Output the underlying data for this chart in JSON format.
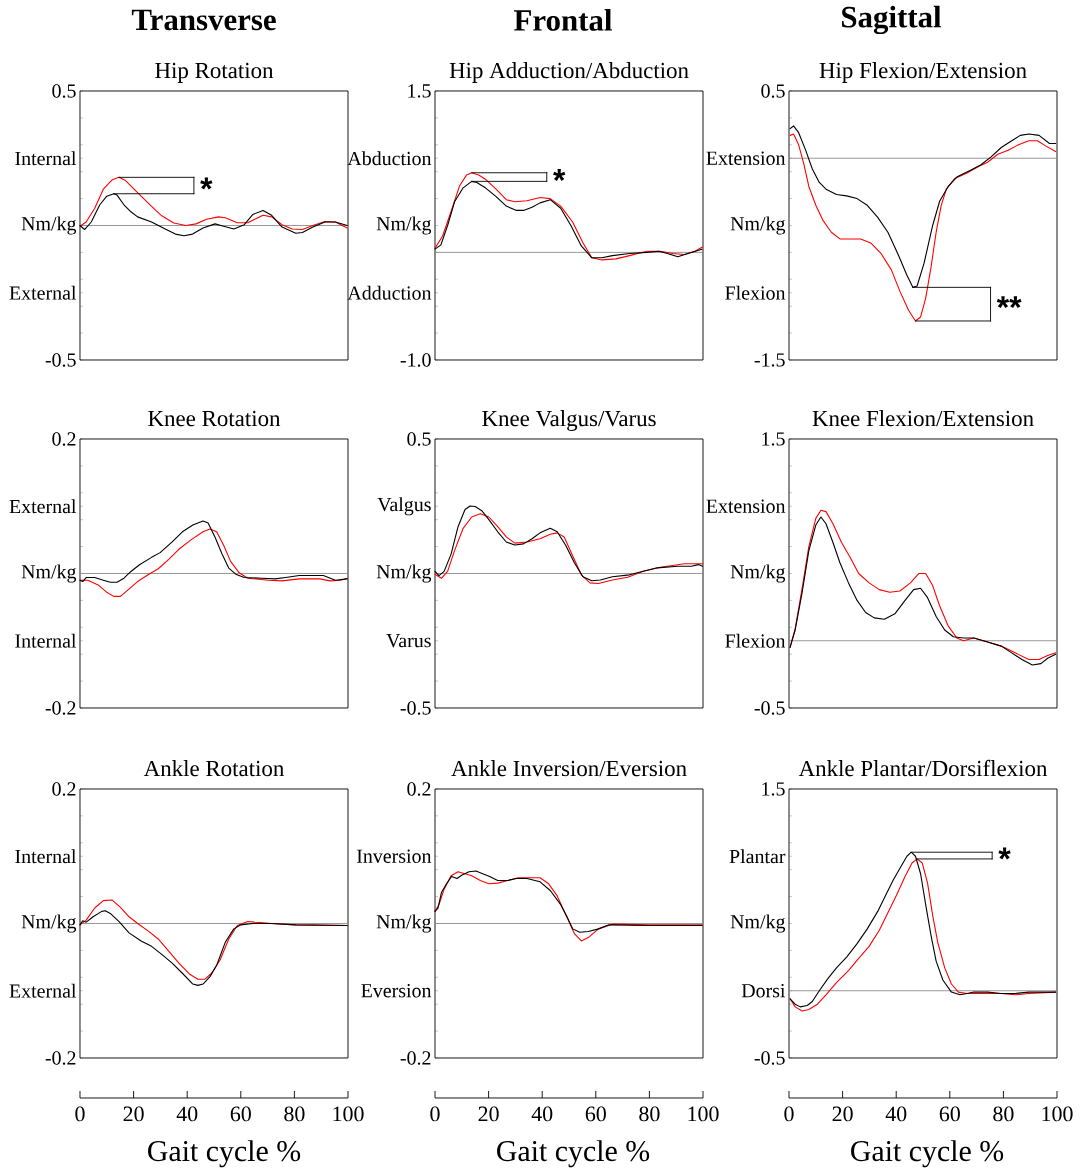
{
  "chart_data": [
    {
      "type": "line",
      "title": "Transverse",
      "subtitle": "Hip Rotation",
      "xlim": [
        0,
        100
      ],
      "ylim": [
        -0.5,
        0.5
      ],
      "tick_labels": "y",
      "yticks": [
        0.5,
        {
          "value": 0.4,
          "label": null
        },
        {
          "value": 0.3,
          "label": null
        },
        {
          "value": 0.25,
          "label": "Internal"
        },
        {
          "value": 0.2,
          "label": null
        },
        {
          "value": 0.1,
          "label": null
        },
        {
          "value": 0,
          "label": "Nm/kg"
        },
        {
          "value": -0.1,
          "label": null
        },
        {
          "value": -0.2,
          "label": null
        },
        {
          "value": -0.25,
          "label": "External"
        },
        {
          "value": -0.3,
          "label": null
        },
        {
          "value": -0.4,
          "label": null
        },
        -0.5
      ],
      "ref_lines": [
        {
          "axis": "y",
          "value": 0,
          "color": "#8c8c8c"
        }
      ],
      "series": [
        {
          "color": "#ff0000",
          "x": [
            0,
            2.3,
            5.5,
            8.7,
            11.9,
            14.5,
            17,
            19.6,
            22.8,
            26.7,
            30.5,
            35,
            39.5,
            43.3,
            47.2,
            51.7,
            54.2,
            58.7,
            62.6,
            68.3,
            71.5,
            75.4,
            79.2,
            83,
            86.9,
            91.4,
            95.3,
            99.7
          ],
          "values": [
            -0.003,
            0.013,
            0.064,
            0.135,
            0.169,
            0.179,
            0.167,
            0.141,
            0.109,
            0.071,
            0.036,
            0.009,
            0.0,
            0.006,
            0.023,
            0.032,
            0.029,
            0.01,
            0.01,
            0.038,
            0.032,
            0.003,
            -0.013,
            -0.015,
            0.0,
            0.015,
            0.013,
            -0.009
          ]
        },
        {
          "color": "#000000",
          "x": [
            0,
            1.7,
            4.2,
            7.4,
            10,
            12.6,
            13.8,
            16.4,
            19,
            21.5,
            26.7,
            31.8,
            35.6,
            38.8,
            42,
            45.9,
            50.4,
            53.6,
            57.4,
            61.3,
            64.5,
            68.3,
            71.5,
            75.4,
            80.5,
            83,
            86.9,
            91.4,
            95.3,
            99.7
          ],
          "values": [
            0.0,
            -0.015,
            0.013,
            0.077,
            0.109,
            0.118,
            0.113,
            0.077,
            0.051,
            0.032,
            0.013,
            -0.013,
            -0.032,
            -0.038,
            -0.032,
            -0.009,
            0.006,
            -0.003,
            -0.013,
            0.003,
            0.041,
            0.056,
            0.038,
            -0.006,
            -0.029,
            -0.026,
            -0.006,
            0.013,
            0.013,
            0.0
          ]
        }
      ],
      "annotations": [
        "*"
      ]
    },
    {
      "type": "line",
      "title": "Frontal",
      "subtitle": "Hip Adduction/Abduction",
      "xlim": [
        0,
        100
      ],
      "ylim": [
        -1.0,
        1.5
      ],
      "tick_labels": "y",
      "yticks": [
        1.5,
        {
          "value": 1.25,
          "label": null
        },
        {
          "value": 1.0,
          "label": null
        },
        {
          "value": 0.875,
          "label": "Abduction"
        },
        {
          "value": 0.75,
          "label": null
        },
        {
          "value": 0.5,
          "label": null
        },
        {
          "value": 0.25,
          "label": "Nm/kg"
        },
        {
          "value": 0,
          "label": null
        },
        {
          "value": -0.25,
          "label": null
        },
        {
          "value": -0.375,
          "label": "Adduction"
        },
        {
          "value": -0.5,
          "label": null
        },
        {
          "value": -0.75,
          "label": null
        },
        {
          "value": -1.0,
          "label": "-1.0"
        }
      ],
      "ref_lines": [
        {
          "axis": "y",
          "value": 0,
          "color": "#8c8c8c"
        }
      ],
      "series": [
        {
          "color": "#ff0000",
          "x": [
            0,
            2.8,
            6,
            9.2,
            11.8,
            13.7,
            16.3,
            18.8,
            22.7,
            26.6,
            29.8,
            34.3,
            39.2,
            43,
            46.9,
            51.4,
            55.2,
            58.5,
            62.3,
            67.5,
            72.6,
            79,
            84.1,
            88.7,
            93.1,
            97,
            99.8
          ],
          "values": [
            0.04,
            0.15,
            0.38,
            0.62,
            0.72,
            0.74,
            0.72,
            0.68,
            0.59,
            0.49,
            0.47,
            0.48,
            0.51,
            0.5,
            0.43,
            0.28,
            0.09,
            -0.05,
            -0.07,
            -0.06,
            -0.03,
            0.01,
            0.01,
            -0.01,
            -0.02,
            0.01,
            0.05
          ]
        },
        {
          "color": "#000000",
          "x": [
            0,
            2.2,
            4.7,
            7.3,
            10.5,
            13.7,
            15.6,
            18.8,
            22.7,
            26.6,
            30.4,
            33,
            36.2,
            39.2,
            43,
            46.9,
            50.7,
            54.6,
            58.5,
            62.3,
            66.2,
            72.6,
            79,
            83.5,
            86.7,
            90.6,
            94.4,
            99.6
          ],
          "values": [
            0.03,
            0.07,
            0.25,
            0.47,
            0.6,
            0.66,
            0.65,
            0.6,
            0.52,
            0.43,
            0.39,
            0.39,
            0.42,
            0.46,
            0.49,
            0.41,
            0.25,
            0.06,
            -0.05,
            -0.05,
            -0.03,
            -0.01,
            0.0,
            0.01,
            -0.01,
            -0.04,
            -0.01,
            0.03
          ]
        }
      ],
      "annotations": [
        "*"
      ]
    },
    {
      "type": "line",
      "title": "Sagittal",
      "subtitle": "Hip Flexion/Extension",
      "xlim": [
        0,
        100
      ],
      "ylim": [
        -1.5,
        0.5
      ],
      "tick_labels": "y",
      "yticks": [
        0.5,
        {
          "value": 0.3,
          "label": null
        },
        {
          "value": 0.1,
          "label": null
        },
        {
          "value": 0,
          "label": "Extension"
        },
        {
          "value": -0.1,
          "label": null
        },
        {
          "value": -0.3,
          "label": null
        },
        {
          "value": -0.5,
          "label": "Nm/kg"
        },
        {
          "value": -0.7,
          "label": null
        },
        {
          "value": -0.9,
          "label": null
        },
        {
          "value": -1.0,
          "label": "Flexion"
        },
        {
          "value": -1.1,
          "label": null
        },
        {
          "value": -1.3,
          "label": null
        },
        -1.5
      ],
      "ref_lines": [
        {
          "axis": "y",
          "value": 0,
          "color": "#8c8c8c"
        }
      ],
      "series": [
        {
          "color": "#ff0000",
          "x": [
            0.4,
            1.7,
            3.6,
            5.5,
            7.4,
            10,
            12.6,
            15.8,
            19,
            22.8,
            26.7,
            30.5,
            34.4,
            38.2,
            41.4,
            44.6,
            47.2,
            49.1,
            51,
            53,
            54.9,
            56.8,
            58.7,
            61.9,
            66.4,
            70.9,
            74.1,
            77.9,
            81.8,
            85.6,
            89.5,
            92.7,
            95.9,
            99.5
          ],
          "values": [
            0.17,
            0.18,
            0.1,
            -0.04,
            -0.21,
            -0.35,
            -0.46,
            -0.55,
            -0.6,
            -0.6,
            -0.6,
            -0.63,
            -0.71,
            -0.83,
            -0.99,
            -1.13,
            -1.21,
            -1.18,
            -1.04,
            -0.81,
            -0.55,
            -0.35,
            -0.23,
            -0.15,
            -0.11,
            -0.06,
            -0.03,
            0.03,
            0.06,
            0.1,
            0.13,
            0.13,
            0.09,
            0.05
          ]
        },
        {
          "color": "#000000",
          "x": [
            0.4,
            1.7,
            3.6,
            6.2,
            8.7,
            11.3,
            13.8,
            17.7,
            21.5,
            25.4,
            29.2,
            33.1,
            36.9,
            40.8,
            44,
            46.2,
            47.8,
            50.4,
            53.6,
            56.2,
            59.4,
            62.6,
            67.7,
            71.5,
            75.4,
            79.2,
            83.1,
            86.3,
            89.5,
            93.3,
            97.2,
            99.5
          ],
          "values": [
            0.22,
            0.24,
            0.19,
            0.06,
            -0.08,
            -0.18,
            -0.23,
            -0.27,
            -0.28,
            -0.3,
            -0.35,
            -0.44,
            -0.55,
            -0.72,
            -0.87,
            -0.96,
            -0.95,
            -0.78,
            -0.5,
            -0.32,
            -0.21,
            -0.14,
            -0.09,
            -0.05,
            0.01,
            0.08,
            0.13,
            0.17,
            0.18,
            0.17,
            0.11,
            0.11
          ]
        }
      ],
      "annotations": [
        "**"
      ]
    },
    {
      "type": "line",
      "title": "Knee Rotation",
      "xlim": [
        0,
        100
      ],
      "ylim": [
        -0.2,
        0.2
      ],
      "tick_labels": "y",
      "yticks": [
        0.2,
        {
          "value": 0.16,
          "label": null
        },
        {
          "value": 0.12,
          "label": null
        },
        {
          "value": 0.1,
          "label": "External"
        },
        {
          "value": 0.08,
          "label": null
        },
        {
          "value": 0.04,
          "label": null
        },
        {
          "value": 0,
          "label": "Nm/kg"
        },
        {
          "value": -0.04,
          "label": null
        },
        {
          "value": -0.08,
          "label": null
        },
        {
          "value": -0.1,
          "label": "Internal"
        },
        {
          "value": -0.12,
          "label": null
        },
        {
          "value": -0.16,
          "label": null
        },
        -0.2
      ],
      "ref_lines": [
        {
          "axis": "y",
          "value": 0,
          "color": "#8c8c8c"
        }
      ],
      "series": [
        {
          "color": "#ff0000",
          "x": [
            0,
            2.9,
            6.8,
            10,
            12.6,
            15.1,
            17.7,
            21.5,
            25.4,
            29.2,
            33.1,
            36.9,
            41.4,
            45.9,
            48.5,
            51,
            53.6,
            56.2,
            59.4,
            62.6,
            70.3,
            75.4,
            81.8,
            89.5,
            93.3,
            97.2,
            99.7
          ],
          "values": [
            -0.01,
            -0.01,
            -0.017,
            -0.028,
            -0.034,
            -0.034,
            -0.025,
            -0.012,
            -0.002,
            0.007,
            0.021,
            0.036,
            0.05,
            0.062,
            0.066,
            0.062,
            0.042,
            0.018,
            0.001,
            -0.007,
            -0.01,
            -0.011,
            -0.008,
            -0.008,
            -0.011,
            -0.01,
            -0.007
          ]
        },
        {
          "color": "#000000",
          "x": [
            0,
            1,
            2.3,
            5.5,
            8.7,
            11.3,
            13.8,
            16.4,
            19,
            22.2,
            26.7,
            29.9,
            34.4,
            38.2,
            42.1,
            45.9,
            47.8,
            50.4,
            53,
            55.5,
            58.1,
            61.3,
            67.7,
            72.8,
            76.7,
            81.8,
            90.8,
            95.3,
            99.7
          ],
          "values": [
            -0.01,
            -0.012,
            -0.006,
            -0.006,
            -0.01,
            -0.013,
            -0.013,
            -0.007,
            0.003,
            0.013,
            0.024,
            0.031,
            0.047,
            0.062,
            0.072,
            0.078,
            0.075,
            0.054,
            0.029,
            0.008,
            -0.001,
            -0.006,
            -0.007,
            -0.008,
            -0.006,
            -0.003,
            -0.003,
            -0.01,
            -0.008
          ]
        }
      ]
    },
    {
      "type": "line",
      "title": "Knee Valgus/Varus",
      "xlim": [
        0,
        100
      ],
      "ylim": [
        -0.5,
        0.5
      ],
      "tick_labels": "y",
      "yticks": [
        0.5,
        {
          "value": 0.4,
          "label": null
        },
        {
          "value": 0.3,
          "label": null
        },
        {
          "value": 0.25,
          "label": "Valgus"
        },
        {
          "value": 0.2,
          "label": null
        },
        {
          "value": 0.1,
          "label": null
        },
        {
          "value": 0,
          "label": "Nm/kg"
        },
        {
          "value": -0.1,
          "label": null
        },
        {
          "value": -0.2,
          "label": null
        },
        {
          "value": -0.25,
          "label": "Varus"
        },
        {
          "value": -0.3,
          "label": null
        },
        {
          "value": -0.4,
          "label": null
        },
        -0.5
      ],
      "ref_lines": [
        {
          "axis": "y",
          "value": 0,
          "color": "#8c8c8c"
        }
      ],
      "series": [
        {
          "color": "#ff0000",
          "x": [
            0,
            2.4,
            4.7,
            7.3,
            10.5,
            13.7,
            16.9,
            20.1,
            23.4,
            26.6,
            29.8,
            34.3,
            39.2,
            43,
            45.6,
            48.2,
            51.4,
            54.6,
            57.8,
            61,
            66.2,
            71.9,
            77.7,
            84.1,
            93.1,
            99.8
          ],
          "values": [
            -0.003,
            -0.018,
            0.008,
            0.085,
            0.168,
            0.21,
            0.222,
            0.21,
            0.174,
            0.136,
            0.113,
            0.117,
            0.129,
            0.146,
            0.151,
            0.136,
            0.065,
            -0.005,
            -0.035,
            -0.037,
            -0.024,
            -0.014,
            0.008,
            0.023,
            0.036,
            0.036
          ]
        },
        {
          "color": "#000000",
          "x": [
            0,
            1.5,
            3.4,
            6,
            8.6,
            11.2,
            13.1,
            15,
            17.6,
            20.1,
            23.4,
            26.6,
            29.8,
            33,
            36.2,
            39.2,
            43,
            45.6,
            48.8,
            52,
            55.2,
            58.5,
            61.7,
            66.2,
            72.6,
            77.7,
            82.9,
            90.6,
            95.7,
            98.3,
            99.8
          ],
          "values": [
            0.008,
            -0.008,
            0.008,
            0.072,
            0.174,
            0.238,
            0.251,
            0.249,
            0.232,
            0.2,
            0.155,
            0.117,
            0.106,
            0.11,
            0.129,
            0.151,
            0.168,
            0.155,
            0.104,
            0.04,
            -0.012,
            -0.027,
            -0.024,
            -0.012,
            -0.005,
            0.008,
            0.021,
            0.027,
            0.027,
            0.033,
            0.027
          ]
        }
      ]
    },
    {
      "type": "line",
      "title": "Knee Flexion/Extension",
      "xlim": [
        0,
        100
      ],
      "ylim": [
        -0.5,
        1.5
      ],
      "tick_labels": "y",
      "yticks": [
        1.5,
        {
          "value": 1.3,
          "label": null
        },
        {
          "value": 1.1,
          "label": null
        },
        {
          "value": 1.0,
          "label": "Extension"
        },
        {
          "value": 0.9,
          "label": null
        },
        {
          "value": 0.7,
          "label": null
        },
        {
          "value": 0.5,
          "label": "Nm/kg"
        },
        {
          "value": 0.3,
          "label": null
        },
        {
          "value": 0.1,
          "label": null
        },
        {
          "value": 0,
          "label": "Flexion"
        },
        {
          "value": -0.1,
          "label": null
        },
        {
          "value": -0.3,
          "label": null
        },
        -0.5
      ],
      "ref_lines": [
        {
          "axis": "y",
          "value": 0,
          "color": "#8c8c8c"
        }
      ],
      "series": [
        {
          "color": "#ff0000",
          "x": [
            0.4,
            2.3,
            4.9,
            7.4,
            10,
            11.9,
            13.8,
            16.4,
            19.6,
            22.8,
            26,
            29.9,
            33.7,
            37.6,
            41.4,
            45.3,
            48.5,
            51,
            53.6,
            56.2,
            59.4,
            62.6,
            65.1,
            69,
            74.1,
            79.2,
            84.4,
            89.5,
            93.3,
            96.5,
            99.5
          ],
          "values": [
            -0.05,
            0.09,
            0.39,
            0.7,
            0.91,
            0.97,
            0.96,
            0.87,
            0.73,
            0.62,
            0.5,
            0.43,
            0.38,
            0.36,
            0.37,
            0.43,
            0.5,
            0.5,
            0.41,
            0.26,
            0.11,
            0.02,
            0.0,
            0.02,
            -0.01,
            -0.04,
            -0.09,
            -0.14,
            -0.14,
            -0.11,
            -0.09
          ]
        },
        {
          "color": "#000000",
          "x": [
            0.4,
            2.3,
            4.9,
            7.4,
            10,
            11.9,
            13.8,
            16.4,
            19,
            22.2,
            25.4,
            28.6,
            31.8,
            35.6,
            39.5,
            43.3,
            46.5,
            49.1,
            51.7,
            54.9,
            58.1,
            61.3,
            65.1,
            69,
            74.1,
            79.2,
            83.1,
            86.9,
            90.8,
            94,
            96.5,
            99.5
          ],
          "values": [
            -0.05,
            0.08,
            0.36,
            0.67,
            0.86,
            0.92,
            0.87,
            0.73,
            0.58,
            0.43,
            0.3,
            0.21,
            0.17,
            0.16,
            0.2,
            0.3,
            0.38,
            0.39,
            0.32,
            0.18,
            0.08,
            0.03,
            0.02,
            0.02,
            -0.01,
            -0.04,
            -0.09,
            -0.14,
            -0.18,
            -0.17,
            -0.13,
            -0.1
          ]
        }
      ]
    },
    {
      "type": "line",
      "title": "Ankle Rotation",
      "xlabel": "Gait cycle %",
      "xlim": [
        0,
        100
      ],
      "ylim": [
        -0.2,
        0.2
      ],
      "xticks": [
        0,
        20,
        40,
        60,
        80,
        100
      ],
      "yticks": [
        0.2,
        {
          "value": 0.16,
          "label": null
        },
        {
          "value": 0.12,
          "label": null
        },
        {
          "value": 0.1,
          "label": "Internal"
        },
        {
          "value": 0.08,
          "label": null
        },
        {
          "value": 0.04,
          "label": null
        },
        {
          "value": 0,
          "label": "Nm/kg"
        },
        {
          "value": -0.04,
          "label": null
        },
        {
          "value": -0.08,
          "label": null
        },
        {
          "value": -0.1,
          "label": "External"
        },
        {
          "value": -0.12,
          "label": null
        },
        {
          "value": -0.16,
          "label": null
        },
        -0.2
      ],
      "ref_lines": [
        {
          "axis": "y",
          "value": 0,
          "color": "#8c8c8c"
        }
      ],
      "series": [
        {
          "color": "#ff0000",
          "x": [
            0,
            2.3,
            5.5,
            8.7,
            11.9,
            15.1,
            18.3,
            21.5,
            25.4,
            29.2,
            33.1,
            36.9,
            40.8,
            44,
            46.5,
            49.1,
            52.3,
            55.5,
            58.7,
            62.6,
            65.1,
            71.5,
            80.5,
            99.7
          ],
          "values": [
            -0.002,
            0.005,
            0.023,
            0.034,
            0.035,
            0.024,
            0.01,
            0.0,
            -0.011,
            -0.023,
            -0.041,
            -0.059,
            -0.075,
            -0.083,
            -0.083,
            -0.074,
            -0.054,
            -0.023,
            -0.003,
            0.003,
            0.002,
            0.0,
            -0.002,
            -0.003
          ]
        },
        {
          "color": "#000000",
          "x": [
            0,
            1,
            2.3,
            4.9,
            8.1,
            9.4,
            11.3,
            14.5,
            18.3,
            22.8,
            26.7,
            30.5,
            34.4,
            38.2,
            42.1,
            44,
            45.9,
            48.5,
            51,
            54.2,
            57.4,
            60,
            64.5,
            71.5,
            80.5,
            99.7
          ],
          "values": [
            -0.002,
            0.004,
            0.002,
            0.01,
            0.018,
            0.019,
            0.015,
            0.003,
            -0.014,
            -0.026,
            -0.034,
            -0.046,
            -0.059,
            -0.074,
            -0.09,
            -0.092,
            -0.09,
            -0.079,
            -0.062,
            -0.028,
            -0.008,
            -0.002,
            0.0,
            0.0,
            -0.002,
            -0.003
          ]
        }
      ]
    },
    {
      "type": "line",
      "title": "Ankle Inversion/Eversion",
      "xlabel": "Gait cycle %",
      "xlim": [
        0,
        100
      ],
      "ylim": [
        -0.2,
        0.2
      ],
      "xticks": [
        0,
        20,
        40,
        60,
        80,
        100
      ],
      "yticks": [
        0.2,
        {
          "value": 0.16,
          "label": null
        },
        {
          "value": 0.12,
          "label": null
        },
        {
          "value": 0.1,
          "label": "Inversion"
        },
        {
          "value": 0.08,
          "label": null
        },
        {
          "value": 0.04,
          "label": null
        },
        {
          "value": 0,
          "label": "Nm/kg"
        },
        {
          "value": -0.04,
          "label": null
        },
        {
          "value": -0.08,
          "label": null
        },
        {
          "value": -0.1,
          "label": "Eversion"
        },
        {
          "value": -0.12,
          "label": null
        },
        {
          "value": -0.16,
          "label": null
        },
        -0.2
      ],
      "ref_lines": [
        {
          "axis": "y",
          "value": 0,
          "color": "#8c8c8c"
        }
      ],
      "series": [
        {
          "color": "#ff0000",
          "x": [
            0,
            1.5,
            3.4,
            6,
            8.6,
            11.2,
            13.7,
            16.9,
            20.1,
            23.4,
            27.2,
            31.1,
            35.6,
            39.2,
            42.4,
            45.6,
            48.8,
            52,
            54.6,
            57.2,
            61,
            66.2,
            80,
            99.7
          ],
          "values": [
            0.018,
            0.028,
            0.051,
            0.071,
            0.077,
            0.074,
            0.071,
            0.064,
            0.059,
            0.06,
            0.064,
            0.068,
            0.068,
            0.068,
            0.059,
            0.041,
            0.013,
            -0.015,
            -0.026,
            -0.021,
            -0.008,
            -0.001,
            -0.002,
            -0.002
          ]
        },
        {
          "color": "#000000",
          "x": [
            0,
            1.1,
            2.4,
            4.3,
            6.2,
            8.2,
            10.1,
            12.7,
            15.3,
            17.8,
            20.4,
            23.4,
            27.2,
            30.4,
            34.3,
            39.2,
            43,
            46.9,
            49.5,
            51.4,
            54,
            57.2,
            61,
            64.9,
            80,
            99.7
          ],
          "values": [
            0.018,
            0.023,
            0.046,
            0.059,
            0.07,
            0.067,
            0.072,
            0.077,
            0.078,
            0.074,
            0.07,
            0.064,
            0.064,
            0.067,
            0.067,
            0.062,
            0.049,
            0.028,
            0.008,
            -0.008,
            -0.013,
            -0.012,
            -0.008,
            -0.002,
            -0.003,
            -0.003
          ]
        }
      ]
    },
    {
      "type": "line",
      "title": "Ankle Plantar/Dorsiflexion",
      "xlabel": "Gait cycle %",
      "xlim": [
        0,
        100
      ],
      "ylim": [
        -0.5,
        1.5
      ],
      "xticks": [
        0,
        20,
        40,
        60,
        80,
        100
      ],
      "yticks": [
        1.5,
        {
          "value": 1.3,
          "label": null
        },
        {
          "value": 1.1,
          "label": null
        },
        {
          "value": 1.0,
          "label": "Plantar"
        },
        {
          "value": 0.9,
          "label": null
        },
        {
          "value": 0.7,
          "label": null
        },
        {
          "value": 0.5,
          "label": "Nm/kg"
        },
        {
          "value": 0.3,
          "label": null
        },
        {
          "value": 0.1,
          "label": null
        },
        {
          "value": 0,
          "label": "Dorsi"
        },
        {
          "value": -0.1,
          "label": null
        },
        {
          "value": -0.3,
          "label": null
        },
        -0.5
      ],
      "ref_lines": [
        {
          "axis": "y",
          "value": 0,
          "color": "#8c8c8c"
        }
      ],
      "series": [
        {
          "color": "#ff0000",
          "x": [
            0.4,
            2.3,
            4.9,
            7.4,
            10.6,
            13.8,
            17.7,
            22.2,
            26,
            29.9,
            33.7,
            36.9,
            40.1,
            43.3,
            45.9,
            47.8,
            49.7,
            51.7,
            53.6,
            55.5,
            58.1,
            60.6,
            63.2,
            66.4,
            74.1,
            79.2,
            84.4,
            89.5,
            99.5
          ],
          "values": [
            -0.06,
            -0.12,
            -0.15,
            -0.14,
            -0.1,
            -0.03,
            0.06,
            0.15,
            0.24,
            0.33,
            0.45,
            0.58,
            0.71,
            0.85,
            0.95,
            0.98,
            0.95,
            0.8,
            0.56,
            0.36,
            0.17,
            0.05,
            -0.01,
            -0.02,
            -0.02,
            -0.02,
            -0.03,
            -0.02,
            -0.01
          ]
        },
        {
          "color": "#000000",
          "x": [
            0.4,
            2.3,
            4.2,
            6.8,
            8.7,
            11.3,
            14.5,
            17.7,
            21.5,
            25.4,
            29.2,
            33.1,
            36.3,
            38.8,
            41.4,
            44,
            45.6,
            47.2,
            49.1,
            51,
            53,
            54.9,
            57.4,
            60.6,
            63.8,
            66.4,
            69,
            74.1,
            79.2,
            84.4,
            89.5,
            99.5
          ],
          "values": [
            -0.06,
            -0.1,
            -0.12,
            -0.11,
            -0.08,
            0.0,
            0.09,
            0.17,
            0.25,
            0.35,
            0.46,
            0.59,
            0.72,
            0.82,
            0.91,
            1.0,
            1.03,
            1.0,
            0.87,
            0.64,
            0.41,
            0.22,
            0.08,
            -0.01,
            -0.03,
            -0.02,
            -0.01,
            -0.01,
            -0.02,
            -0.02,
            -0.01,
            -0.01
          ]
        }
      ],
      "annotations": [
        "*"
      ]
    }
  ]
}
